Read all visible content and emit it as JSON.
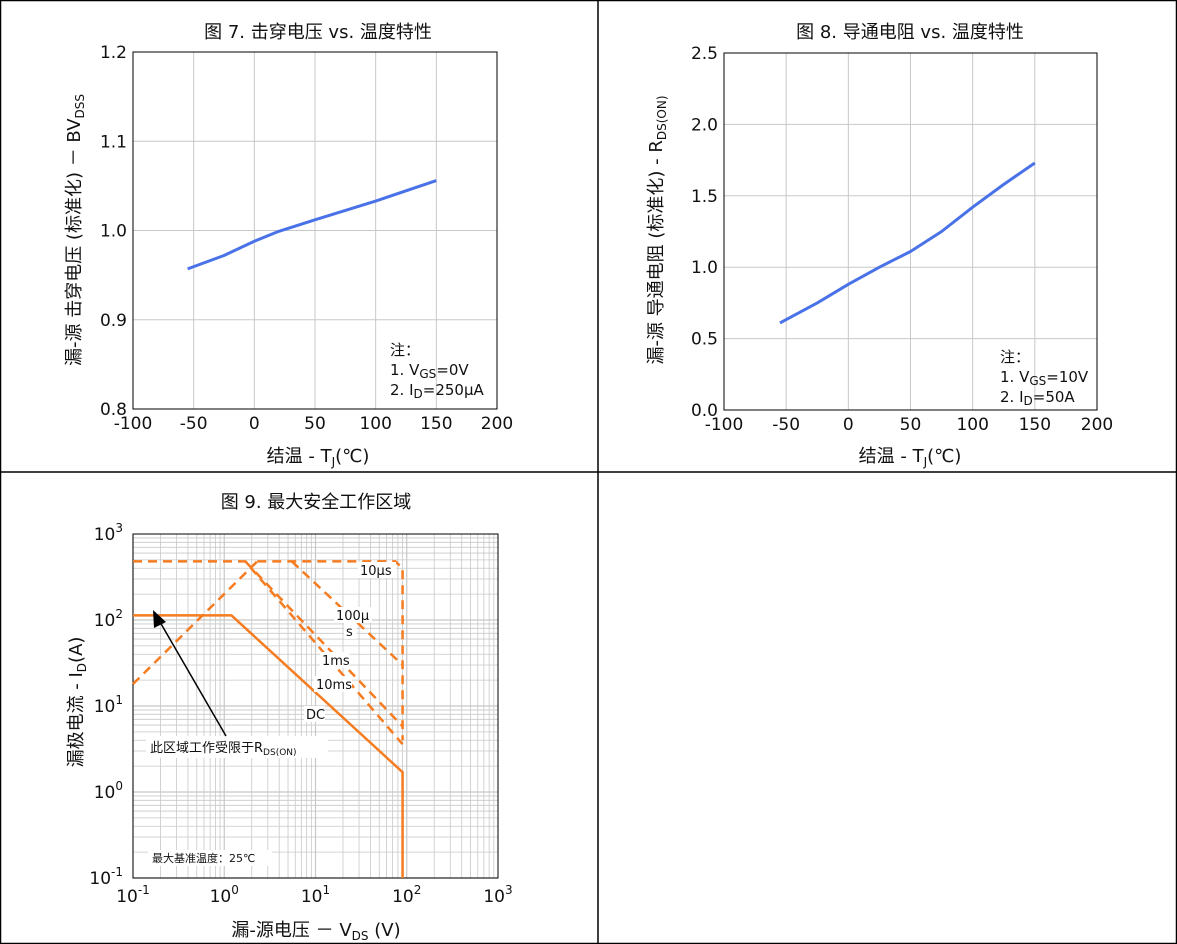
{
  "colors": {
    "blue": "#4A72E8",
    "orange": "#F57C20",
    "grid": "#c8c8c8",
    "frame": "#000000"
  },
  "chart_data": [
    {
      "type": "line",
      "title": "图 7. 击穿电压 vs. 温度特性",
      "xlabel": "结温 - T",
      "xlabel_sub": "J",
      "xlabel_tail": "(℃)",
      "ylabel": "漏-源 击穿电压 (标准化) － BV",
      "ylabel_sub": "DSS",
      "xlim": [
        -100,
        200
      ],
      "ylim": [
        0.8,
        1.2
      ],
      "xticks": [
        -100,
        -50,
        0,
        50,
        100,
        150,
        200
      ],
      "yticks": [
        0.8,
        0.9,
        1.0,
        1.1,
        1.2
      ],
      "ytick_labels": [
        "0.8",
        "0.9",
        "1.0",
        "1.1",
        "1.2"
      ],
      "grid": true,
      "notes": {
        "header": "注：",
        "lines": [
          {
            "pre": "1. V",
            "sub": "GS",
            "post": "=0V"
          },
          {
            "pre": "2. I",
            "sub": "D",
            "post": "=250µA"
          }
        ]
      },
      "series": [
        {
          "x": [
            -55,
            -25,
            0,
            20,
            50,
            100,
            150
          ],
          "y": [
            0.957,
            0.972,
            0.988,
            0.999,
            1.012,
            1.033,
            1.056
          ]
        }
      ]
    },
    {
      "type": "line",
      "title": "图 8. 导通电阻 vs. 温度特性",
      "xlabel": "结温 - T",
      "xlabel_sub": "J",
      "xlabel_tail": "(℃)",
      "ylabel": "漏-源 导通电阻 (标准化) - R",
      "ylabel_sub": "DS(ON)",
      "xlim": [
        -100,
        200
      ],
      "ylim": [
        0,
        2.5
      ],
      "xticks": [
        -100,
        -50,
        0,
        50,
        100,
        150,
        200
      ],
      "yticks": [
        0,
        0.5,
        1.0,
        1.5,
        2.0,
        2.5
      ],
      "ytick_labels": [
        "0.0",
        "0.5",
        "1.0",
        "1.5",
        "2.0",
        "2.5"
      ],
      "grid": true,
      "notes": {
        "header": "注：",
        "lines": [
          {
            "pre": "1. V",
            "sub": "GS",
            "post": "=10V"
          },
          {
            "pre": "2. I",
            "sub": "D",
            "post": "=50A"
          }
        ]
      },
      "series": [
        {
          "x": [
            -55,
            -25,
            0,
            25,
            50,
            75,
            100,
            125,
            150
          ],
          "y": [
            0.61,
            0.75,
            0.88,
            1.0,
            1.11,
            1.25,
            1.42,
            1.58,
            1.73
          ]
        }
      ]
    },
    {
      "type": "line",
      "log_x": true,
      "log_y": true,
      "title": "图 9. 最大安全工作区域",
      "xlabel": "漏-源电压 － V",
      "xlabel_sub": "DS",
      "xlabel_tail": " (V)",
      "ylabel": "漏极电流 - I",
      "ylabel_sub": "D",
      "ylabel_tail": "(A)",
      "xlim": [
        0.1,
        1000
      ],
      "ylim": [
        0.1,
        1000
      ],
      "tick_exponents": [
        -1,
        0,
        1,
        2,
        3
      ],
      "grid": true,
      "annotation": {
        "pre": "此区域工作受限于R",
        "sub": "DS(ON)"
      },
      "temp_note": "最大基准温度：25℃",
      "series": [
        {
          "label": "10µs",
          "dashed": true,
          "x": [
            2.3,
            75,
            90,
            90
          ],
          "y": [
            480,
            480,
            400,
            4.0
          ]
        },
        {
          "label": "100µ s",
          "dashed": true,
          "x": [
            5.5,
            90
          ],
          "y": [
            480,
            30
          ]
        },
        {
          "label": "1ms",
          "dashed": true,
          "x": [
            1.7,
            90
          ],
          "y": [
            480,
            5.8
          ]
        },
        {
          "label": "10ms",
          "dashed": true,
          "x": [
            0.1,
            1.7,
            90
          ],
          "y": [
            480,
            480,
            3.6
          ]
        },
        {
          "label": "RDS(ON)",
          "dashed": true,
          "x": [
            0.1,
            2.3
          ],
          "y": [
            18,
            480
          ]
        },
        {
          "label": "DC",
          "dashed": false,
          "x": [
            0.1,
            1.2,
            90,
            90
          ],
          "y": [
            113,
            113,
            1.7,
            0.1
          ]
        }
      ]
    }
  ]
}
